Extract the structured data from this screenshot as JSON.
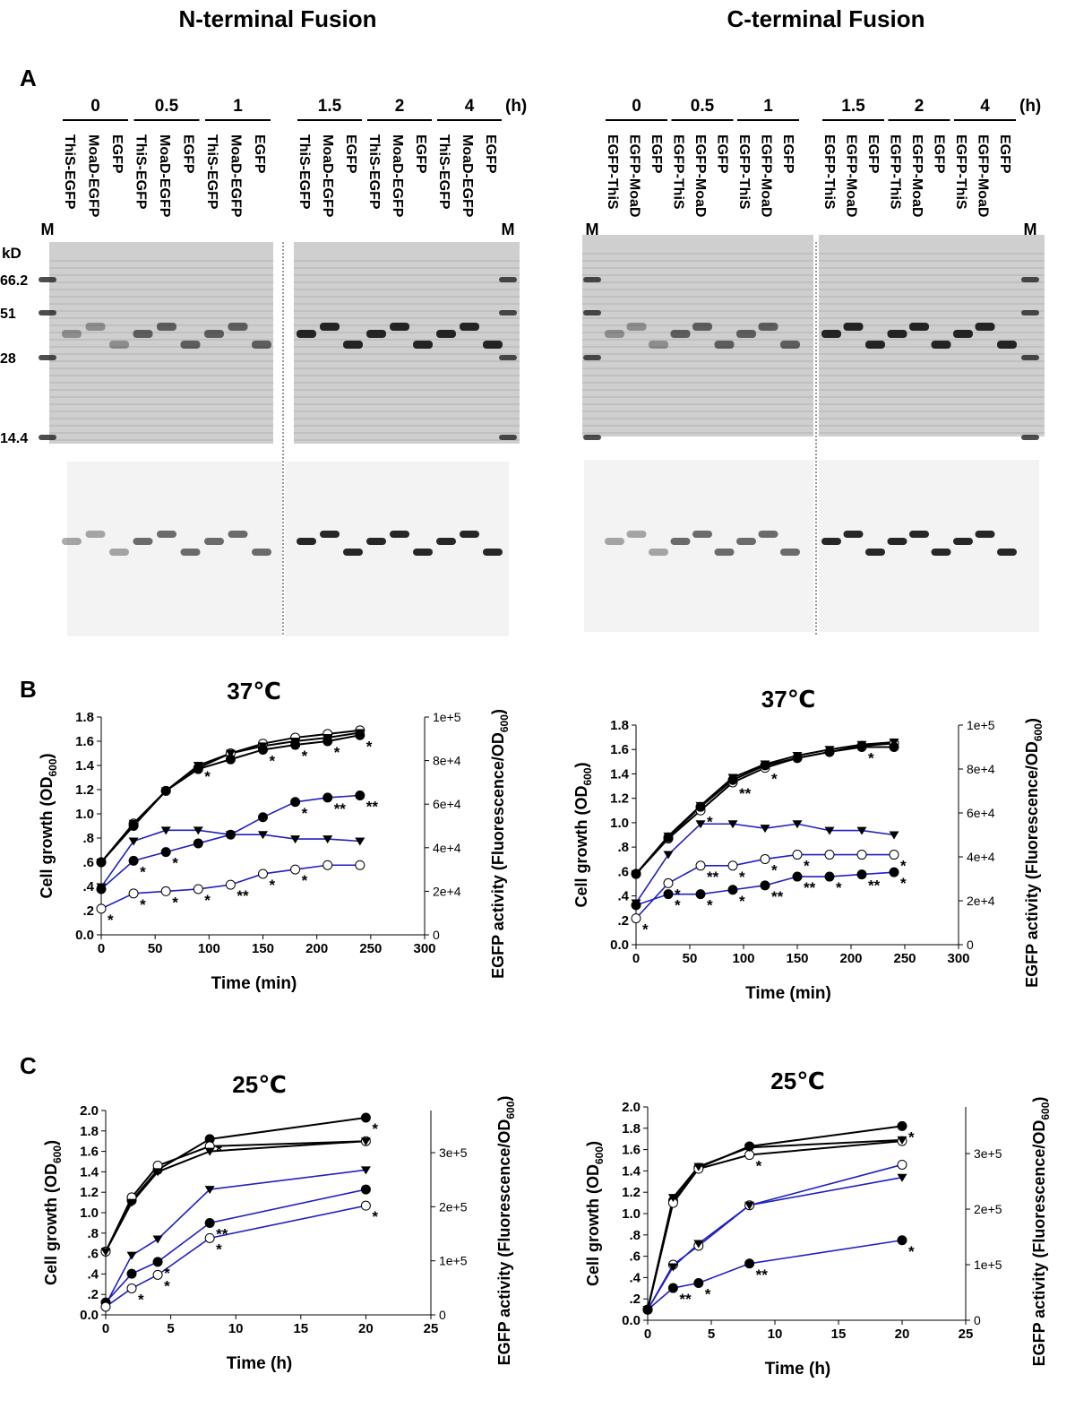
{
  "headings": [
    "N-terminal Fusion",
    "C-terminal Fusion"
  ],
  "panel_labels": [
    "A",
    "B",
    "C"
  ],
  "gels": [
    {
      "time_labels": [
        "0",
        "0.5",
        "1",
        "1.5",
        "2",
        "4"
      ],
      "unit": "(h)",
      "marker_lanes": [
        "M",
        "M"
      ],
      "lanes": [
        "ThiS-EGFP",
        "MoaD-EGFP",
        "EGFP",
        "ThiS-EGFP",
        "MoaD-EGFP",
        "EGFP",
        "ThiS-EGFP",
        "MoaD-EGFP",
        "EGFP",
        "ThiS-EGFP",
        "MoaD-EGFP",
        "EGFP",
        "ThiS-EGFP",
        "MoaD-EGFP",
        "EGFP",
        "ThiS-EGFP",
        "MoaD-EGFP",
        "EGFP"
      ],
      "kd_label": "kD",
      "kd_markers": [
        "66.2",
        "51",
        "28",
        "14.4"
      ]
    },
    {
      "time_labels": [
        "0",
        "0.5",
        "1",
        "1.5",
        "2",
        "4"
      ],
      "unit": "(h)",
      "marker_lanes": [
        "M",
        "M"
      ],
      "lanes": [
        "EGFP-ThiS",
        "EGFP-MoaD",
        "EGFP",
        "EGFP-ThiS",
        "EGFP-MoaD",
        "EGFP",
        "EGFP-ThiS",
        "EGFP-MoaD",
        "EGFP",
        "EGFP-ThiS",
        "EGFP-MoaD",
        "EGFP",
        "EGFP-ThiS",
        "EGFP-MoaD",
        "EGFP",
        "EGFP-ThiS",
        "EGFP-MoaD",
        "EGFP"
      ]
    }
  ],
  "chart_data": [
    {
      "type": "line",
      "title": "37℃",
      "x_label": "Time (min)",
      "y_label": {
        "text": "Cell growth (OD",
        "sub": "600",
        "end": ")"
      },
      "y2_label": {
        "text": "EGFP activity (Fluorescence/OD",
        "sub": "600",
        "end": ")"
      },
      "x": [
        0,
        30,
        60,
        90,
        120,
        150,
        180,
        210,
        240
      ],
      "xlim": [
        0,
        300
      ],
      "xticks": [
        0,
        50,
        100,
        150,
        200,
        250,
        300
      ],
      "ylim": [
        0,
        1.8
      ],
      "yticks": [
        {
          "value": 0,
          "label": "0.0"
        },
        {
          "value": 0.2,
          "label": ".2"
        },
        {
          "value": 0.4,
          "label": ".4"
        },
        {
          "value": 0.6,
          "label": ".6"
        },
        {
          "value": 0.8,
          "label": ".8"
        },
        {
          "value": 1,
          "label": "1.0"
        },
        1.2,
        1.4,
        1.6,
        1.8
      ],
      "y2lim": [
        0,
        100000
      ],
      "y2ticks": [
        0,
        {
          "value": 20000,
          "label": "2e+4"
        },
        {
          "value": 40000,
          "label": "4e+4"
        },
        {
          "value": 60000,
          "label": "6e+4"
        },
        {
          "value": 80000,
          "label": "8e+4"
        },
        {
          "value": 100000,
          "label": "1e+5"
        }
      ],
      "series": [
        {
          "color": "#000000",
          "marker": "open-circle",
          "values": [
            0.6,
            0.92,
            1.19,
            1.38,
            1.5,
            1.58,
            1.63,
            1.66,
            1.69
          ]
        },
        {
          "color": "#000000",
          "marker": "triangle",
          "values": [
            0.6,
            0.92,
            1.19,
            1.4,
            1.5,
            1.56,
            1.6,
            1.63,
            1.67
          ],
          "stars": [
            null,
            null,
            null,
            "*",
            null,
            null,
            null,
            null,
            null
          ]
        },
        {
          "color": "#000000",
          "marker": "filled-circle",
          "values": [
            0.6,
            0.9,
            1.19,
            1.37,
            1.45,
            1.53,
            1.57,
            1.6,
            1.65
          ],
          "stars": [
            null,
            null,
            null,
            null,
            null,
            "*",
            "*",
            "*",
            "*"
          ]
        },
        {
          "color": "#2020c0",
          "marker": "filled-circle",
          "axis": "y2",
          "values": [
            21000,
            34000,
            38000,
            42000,
            46000,
            54000,
            61000,
            63000,
            64000
          ],
          "stars": [
            null,
            "*",
            "*",
            null,
            null,
            null,
            "*",
            "**",
            "**"
          ]
        },
        {
          "color": "#2020c0",
          "marker": "triangle",
          "axis": "y2",
          "values": [
            22000,
            43000,
            48000,
            48000,
            46000,
            46000,
            44000,
            44000,
            43000
          ]
        },
        {
          "color": "#2020c0",
          "marker": "open-circle",
          "axis": "y2",
          "values": [
            12000,
            19000,
            20000,
            21000,
            23000,
            28000,
            30000,
            32000,
            32000
          ],
          "stars": [
            "*",
            "*",
            "*",
            "*",
            "**",
            "*",
            "*",
            null,
            null
          ]
        }
      ]
    },
    {
      "type": "line",
      "title": "37℃",
      "x_label": "Time (min)",
      "y_label": {
        "text": "Cell growth (OD",
        "sub": "600",
        "end": ")"
      },
      "y2_label": {
        "text": "EGFP activity (Fluorescence/OD",
        "sub": "600",
        "end": ")"
      },
      "x": [
        0,
        30,
        60,
        90,
        120,
        150,
        180,
        210,
        240
      ],
      "xlim": [
        0,
        300
      ],
      "xticks": [
        0,
        50,
        100,
        150,
        200,
        250,
        300
      ],
      "ylim": [
        0,
        1.8
      ],
      "yticks": [
        {
          "value": 0,
          "label": "0.0"
        },
        {
          "value": 0.2,
          "label": ".2"
        },
        {
          "value": 0.4,
          "label": ".4"
        },
        {
          "value": 0.6,
          "label": ".6"
        },
        {
          "value": 0.8,
          "label": ".8"
        },
        {
          "value": 1,
          "label": "1.0"
        },
        1.2,
        1.4,
        1.6,
        1.8
      ],
      "y2lim": [
        0,
        100000
      ],
      "y2ticks": [
        0,
        {
          "value": 20000,
          "label": "2e+4"
        },
        {
          "value": 40000,
          "label": "4e+4"
        },
        {
          "value": 60000,
          "label": "6e+4"
        },
        {
          "value": 80000,
          "label": "8e+4"
        },
        {
          "value": 100000,
          "label": "1e+5"
        }
      ],
      "series": [
        {
          "color": "#000000",
          "marker": "open-circle",
          "values": [
            0.58,
            0.87,
            1.1,
            1.33,
            1.45,
            1.53,
            1.58,
            1.63,
            1.65
          ],
          "stars": [
            null,
            null,
            "*",
            "**",
            "*",
            null,
            null,
            null,
            null
          ]
        },
        {
          "color": "#000000",
          "marker": "filled-circle",
          "values": [
            0.58,
            0.88,
            1.13,
            1.35,
            1.47,
            1.53,
            1.58,
            1.62,
            1.62
          ],
          "stars": [
            null,
            null,
            null,
            null,
            null,
            null,
            null,
            "*",
            null
          ]
        },
        {
          "color": "#000000",
          "marker": "triangle",
          "values": [
            0.58,
            0.89,
            1.14,
            1.37,
            1.48,
            1.55,
            1.6,
            1.64,
            1.66
          ]
        },
        {
          "color": "#2020c0",
          "marker": "triangle",
          "axis": "y2",
          "values": [
            19000,
            41000,
            55000,
            55000,
            53000,
            55000,
            52000,
            52000,
            50000
          ]
        },
        {
          "color": "#2020c0",
          "marker": "open-circle",
          "axis": "y2",
          "values": [
            12000,
            28000,
            36000,
            36000,
            39000,
            41000,
            41000,
            41000,
            41000
          ],
          "stars": [
            "*",
            "*",
            "**",
            "*",
            "*",
            "*",
            null,
            null,
            "*"
          ]
        },
        {
          "color": "#2020c0",
          "marker": "filled-circle",
          "axis": "y2",
          "values": [
            18000,
            23000,
            23000,
            25000,
            27000,
            31000,
            31000,
            32000,
            33000
          ],
          "stars": [
            null,
            "*",
            "*",
            "*",
            "**",
            "**",
            "*",
            "**",
            "*"
          ]
        }
      ]
    },
    {
      "type": "line",
      "title": "25℃",
      "x_label": "Time (h)",
      "y_label": {
        "text": "Cell growth (OD",
        "sub": "600",
        "end": ")"
      },
      "y2_label": {
        "text": "EGFP activity (Fluorescence/OD",
        "sub": "600",
        "end": ")"
      },
      "x": [
        0,
        2,
        4,
        8,
        20
      ],
      "xlim": [
        0,
        25
      ],
      "xticks": [
        0,
        5,
        10,
        15,
        20,
        25
      ],
      "ylim": [
        0,
        2
      ],
      "yticks": [
        {
          "value": 0,
          "label": "0.0"
        },
        {
          "value": 0.2,
          "label": ".2"
        },
        {
          "value": 0.4,
          "label": ".4"
        },
        {
          "value": 0.6,
          "label": ".6"
        },
        {
          "value": 0.8,
          "label": ".8"
        },
        {
          "value": 1,
          "label": "1.0"
        },
        1.2,
        1.4,
        1.6,
        1.8,
        {
          "value": 2,
          "label": "2.0"
        }
      ],
      "y2lim": [
        0,
        378000
      ],
      "y2ticks": [
        0,
        {
          "value": 100000,
          "label": "1e+5"
        },
        {
          "value": 200000,
          "label": "2e+5"
        },
        {
          "value": 300000,
          "label": "3e+5"
        }
      ],
      "series": [
        {
          "color": "#000000",
          "marker": "filled-circle",
          "values": [
            0.62,
            1.12,
            1.42,
            1.72,
            1.93
          ],
          "stars": [
            null,
            null,
            null,
            "*",
            "*"
          ]
        },
        {
          "color": "#000000",
          "marker": "open-circle",
          "values": [
            0.62,
            1.15,
            1.46,
            1.65,
            1.7
          ]
        },
        {
          "color": "#000000",
          "marker": "triangle",
          "values": [
            0.62,
            1.1,
            1.4,
            1.6,
            1.7
          ]
        },
        {
          "color": "#2020c0",
          "marker": "triangle",
          "axis": "y2",
          "values": [
            19000,
            110000,
            140000,
            232000,
            268000
          ]
        },
        {
          "color": "#2020c0",
          "marker": "filled-circle",
          "axis": "y2",
          "values": [
            23000,
            76000,
            98000,
            170000,
            232000
          ],
          "stars": [
            null,
            null,
            "*",
            "**",
            null
          ]
        },
        {
          "color": "#2020c0",
          "marker": "open-circle",
          "axis": "y2",
          "values": [
            15000,
            49000,
            74000,
            142000,
            202000
          ],
          "stars": [
            null,
            "*",
            "*",
            "*",
            "*"
          ]
        }
      ]
    },
    {
      "type": "line",
      "title": "25℃",
      "x_label": "Time (h)",
      "y_label": {
        "text": "Cell growth (OD",
        "sub": "600",
        "end": ")"
      },
      "y2_label": {
        "text": "EGFP activity (Fluorescence/OD",
        "sub": "600",
        "end": ")"
      },
      "x": [
        0,
        2,
        4,
        8,
        20
      ],
      "xlim": [
        0,
        25
      ],
      "xticks": [
        0,
        5,
        10,
        15,
        20,
        25
      ],
      "ylim": [
        0,
        2
      ],
      "yticks": [
        {
          "value": 0,
          "label": "0.0"
        },
        {
          "value": 0.2,
          "label": ".2"
        },
        {
          "value": 0.4,
          "label": ".4"
        },
        {
          "value": 0.6,
          "label": ".6"
        },
        {
          "value": 0.8,
          "label": ".8"
        },
        {
          "value": 1,
          "label": "1.0"
        },
        1.2,
        1.4,
        1.6,
        1.8,
        {
          "value": 2,
          "label": "2.0"
        }
      ],
      "y2lim": [
        0,
        384000
      ],
      "y2ticks": [
        0,
        {
          "value": 100000,
          "label": "1e+5"
        },
        {
          "value": 200000,
          "label": "2e+5"
        },
        {
          "value": 300000,
          "label": "3e+5"
        }
      ],
      "series": [
        {
          "color": "#000000",
          "marker": "filled-circle",
          "values": [
            0.1,
            1.12,
            1.43,
            1.63,
            1.82
          ],
          "stars": [
            null,
            null,
            null,
            null,
            "*"
          ]
        },
        {
          "color": "#000000",
          "marker": "open-circle",
          "values": [
            0.1,
            1.1,
            1.42,
            1.55,
            1.68
          ],
          "stars": [
            null,
            null,
            null,
            "*",
            null
          ]
        },
        {
          "color": "#000000",
          "marker": "triangle",
          "values": [
            0.1,
            1.15,
            1.44,
            1.62,
            1.69
          ]
        },
        {
          "color": "#2020c0",
          "marker": "open-circle",
          "axis": "y2",
          "values": [
            19000,
            100000,
            134000,
            207000,
            280000
          ]
        },
        {
          "color": "#2020c0",
          "marker": "triangle",
          "axis": "y2",
          "values": [
            19000,
            96000,
            138000,
            207000,
            257000
          ]
        },
        {
          "color": "#2020c0",
          "marker": "filled-circle",
          "axis": "y2",
          "values": [
            19000,
            58000,
            67000,
            102000,
            144000
          ],
          "stars": [
            null,
            "**",
            "*",
            "**",
            "*"
          ]
        }
      ]
    }
  ]
}
